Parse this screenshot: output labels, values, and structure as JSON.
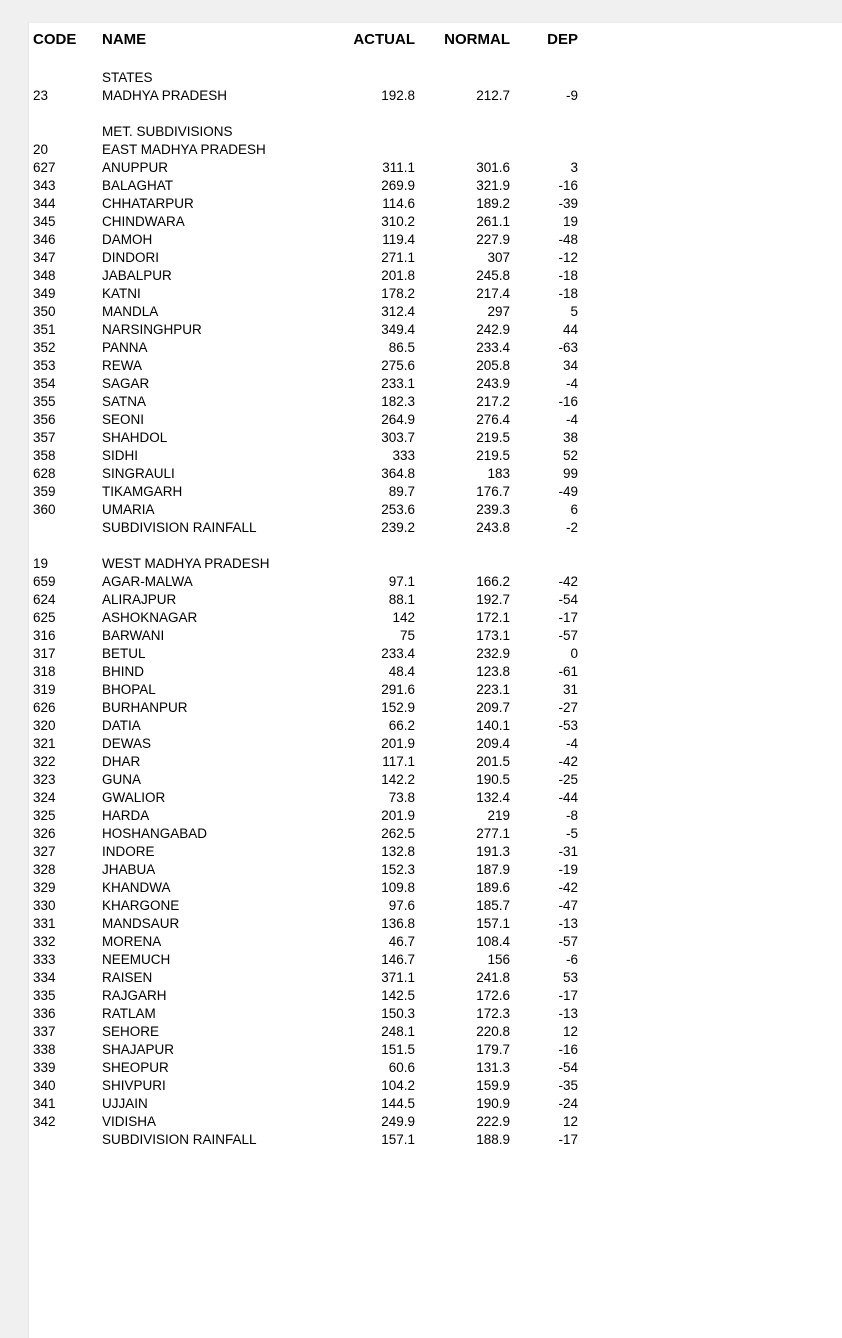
{
  "colors": {
    "page_background": "#f0f0f0",
    "panel_background": "#ffffff",
    "text": "#000000"
  },
  "table": {
    "columns": [
      "CODE",
      "NAME",
      "ACTUAL",
      "NORMAL",
      "DEP"
    ],
    "sections": [
      {
        "heading": "STATES",
        "groups": [
          {
            "code": "23",
            "name": "MADHYA PRADESH",
            "actual": "192.8",
            "normal": "212.7",
            "dep": "-9",
            "districts": [],
            "summary": null
          }
        ]
      },
      {
        "heading": "MET. SUBDIVISIONS",
        "groups": [
          {
            "code": "20",
            "name": "EAST MADHYA PRADESH",
            "actual": "",
            "normal": "",
            "dep": "",
            "districts": [
              [
                "627",
                "ANUPPUR",
                "311.1",
                "301.6",
                "3"
              ],
              [
                "343",
                "BALAGHAT",
                "269.9",
                "321.9",
                "-16"
              ],
              [
                "344",
                "CHHATARPUR",
                "114.6",
                "189.2",
                "-39"
              ],
              [
                "345",
                "CHINDWARA",
                "310.2",
                "261.1",
                "19"
              ],
              [
                "346",
                "DAMOH",
                "119.4",
                "227.9",
                "-48"
              ],
              [
                "347",
                "DINDORI",
                "271.1",
                "307",
                "-12"
              ],
              [
                "348",
                "JABALPUR",
                "201.8",
                "245.8",
                "-18"
              ],
              [
                "349",
                "KATNI",
                "178.2",
                "217.4",
                "-18"
              ],
              [
                "350",
                "MANDLA",
                "312.4",
                "297",
                "5"
              ],
              [
                "351",
                "NARSINGHPUR",
                "349.4",
                "242.9",
                "44"
              ],
              [
                "352",
                "PANNA",
                "86.5",
                "233.4",
                "-63"
              ],
              [
                "353",
                "REWA",
                "275.6",
                "205.8",
                "34"
              ],
              [
                "354",
                "SAGAR",
                "233.1",
                "243.9",
                "-4"
              ],
              [
                "355",
                "SATNA",
                "182.3",
                "217.2",
                "-16"
              ],
              [
                "356",
                "SEONI",
                "264.9",
                "276.4",
                "-4"
              ],
              [
                "357",
                "SHAHDOL",
                "303.7",
                "219.5",
                "38"
              ],
              [
                "358",
                "SIDHI",
                "333",
                "219.5",
                "52"
              ],
              [
                "628",
                "SINGRAULI",
                "364.8",
                "183",
                "99"
              ],
              [
                "359",
                "TIKAMGARH",
                "89.7",
                "176.7",
                "-49"
              ],
              [
                "360",
                "UMARIA",
                "253.6",
                "239.3",
                "6"
              ]
            ],
            "summary": {
              "name": "SUBDIVISION RAINFALL",
              "actual": "239.2",
              "normal": "243.8",
              "dep": "-2"
            }
          },
          {
            "code": "19",
            "name": "WEST MADHYA PRADESH",
            "actual": "",
            "normal": "",
            "dep": "",
            "districts": [
              [
                "659",
                "AGAR-MALWA",
                "97.1",
                "166.2",
                "-42"
              ],
              [
                "624",
                "ALIRAJPUR",
                "88.1",
                "192.7",
                "-54"
              ],
              [
                "625",
                "ASHOKNAGAR",
                "142",
                "172.1",
                "-17"
              ],
              [
                "316",
                "BARWANI",
                "75",
                "173.1",
                "-57"
              ],
              [
                "317",
                "BETUL",
                "233.4",
                "232.9",
                "0"
              ],
              [
                "318",
                "BHIND",
                "48.4",
                "123.8",
                "-61"
              ],
              [
                "319",
                "BHOPAL",
                "291.6",
                "223.1",
                "31"
              ],
              [
                "626",
                "BURHANPUR",
                "152.9",
                "209.7",
                "-27"
              ],
              [
                "320",
                "DATIA",
                "66.2",
                "140.1",
                "-53"
              ],
              [
                "321",
                "DEWAS",
                "201.9",
                "209.4",
                "-4"
              ],
              [
                "322",
                "DHAR",
                "117.1",
                "201.5",
                "-42"
              ],
              [
                "323",
                "GUNA",
                "142.2",
                "190.5",
                "-25"
              ],
              [
                "324",
                "GWALIOR",
                "73.8",
                "132.4",
                "-44"
              ],
              [
                "325",
                "HARDA",
                "201.9",
                "219",
                "-8"
              ],
              [
                "326",
                "HOSHANGABAD",
                "262.5",
                "277.1",
                "-5"
              ],
              [
                "327",
                "INDORE",
                "132.8",
                "191.3",
                "-31"
              ],
              [
                "328",
                "JHABUA",
                "152.3",
                "187.9",
                "-19"
              ],
              [
                "329",
                "KHANDWA",
                "109.8",
                "189.6",
                "-42"
              ],
              [
                "330",
                "KHARGONE",
                "97.6",
                "185.7",
                "-47"
              ],
              [
                "331",
                "MANDSAUR",
                "136.8",
                "157.1",
                "-13"
              ],
              [
                "332",
                "MORENA",
                "46.7",
                "108.4",
                "-57"
              ],
              [
                "333",
                "NEEMUCH",
                "146.7",
                "156",
                "-6"
              ],
              [
                "334",
                "RAISEN",
                "371.1",
                "241.8",
                "53"
              ],
              [
                "335",
                "RAJGARH",
                "142.5",
                "172.6",
                "-17"
              ],
              [
                "336",
                "RATLAM",
                "150.3",
                "172.3",
                "-13"
              ],
              [
                "337",
                "SEHORE",
                "248.1",
                "220.8",
                "12"
              ],
              [
                "338",
                "SHAJAPUR",
                "151.5",
                "179.7",
                "-16"
              ],
              [
                "339",
                "SHEOPUR",
                "60.6",
                "131.3",
                "-54"
              ],
              [
                "340",
                "SHIVPURI",
                "104.2",
                "159.9",
                "-35"
              ],
              [
                "341",
                "UJJAIN",
                "144.5",
                "190.9",
                "-24"
              ],
              [
                "342",
                "VIDISHA",
                "249.9",
                "222.9",
                "12"
              ]
            ],
            "summary": {
              "name": "SUBDIVISION RAINFALL",
              "actual": "157.1",
              "normal": "188.9",
              "dep": "-17"
            }
          }
        ]
      }
    ]
  }
}
